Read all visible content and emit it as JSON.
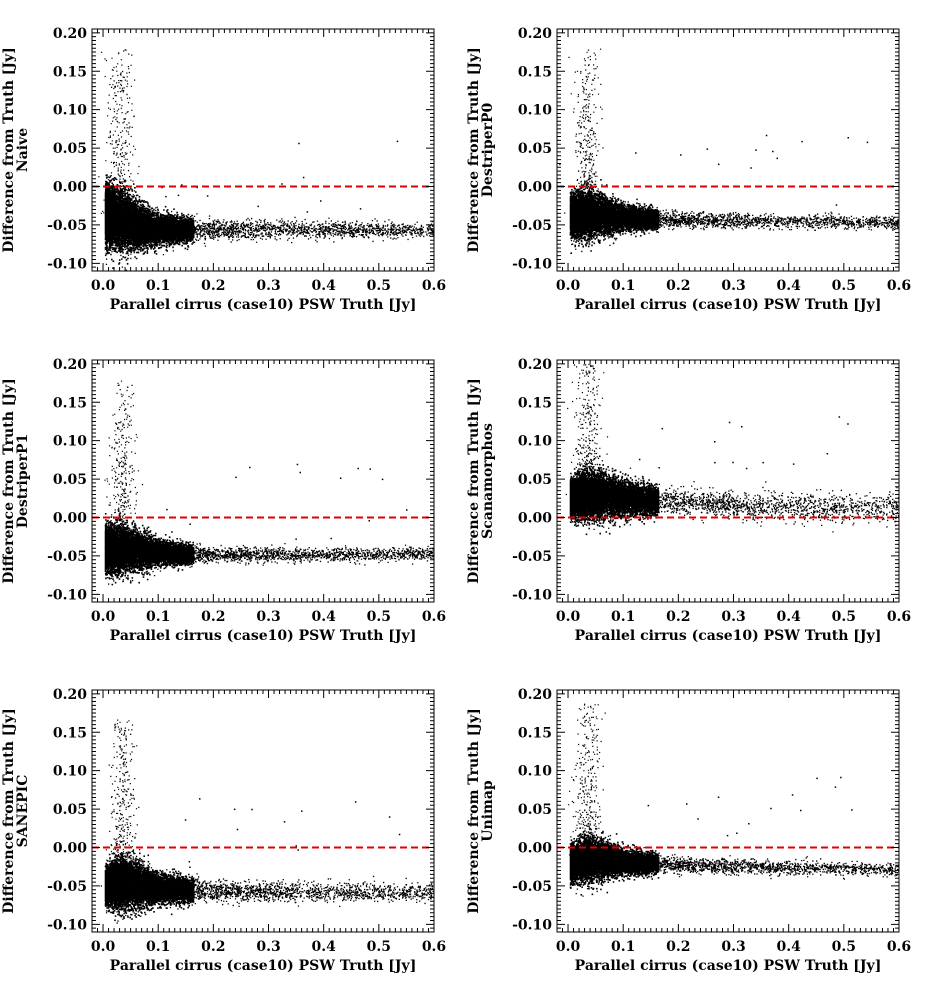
{
  "figure": {
    "rows": 3,
    "cols": 2,
    "reference_line_color": "#e00000",
    "point_color": "#000000"
  },
  "chart_data": [
    {
      "type": "scatter",
      "method": "Naive",
      "title": "",
      "xlabel": "Parallel cirrus (case10) PSW Truth [Jy]",
      "ylabel": "Difference from Truth [Jy]",
      "ylabel2": "Naive",
      "xlim": [
        -0.02,
        0.6
      ],
      "ylim": [
        -0.11,
        0.205
      ],
      "xticks": [
        "0.0",
        "0.1",
        "0.2",
        "0.3",
        "0.4",
        "0.5",
        "0.6"
      ],
      "yticks": [
        "-0.10",
        "-0.05",
        "0.00",
        "0.05",
        "0.10",
        "0.15",
        "0.20"
      ],
      "reference_line_y": 0.0,
      "trend": {
        "x": [
          0.0,
          0.03,
          0.06,
          0.1,
          0.15,
          0.2,
          0.3,
          0.4,
          0.5,
          0.6
        ],
        "y": [
          -0.035,
          -0.043,
          -0.05,
          -0.055,
          -0.056,
          -0.055,
          -0.055,
          -0.056,
          -0.056,
          -0.057
        ]
      },
      "spread": {
        "x": [
          0.0,
          0.03,
          0.06,
          0.1,
          0.2,
          0.6
        ],
        "y": [
          0.022,
          0.025,
          0.02,
          0.012,
          0.008,
          0.006
        ]
      },
      "spike": {
        "x_center": 0.03,
        "y_max": 0.18
      }
    },
    {
      "type": "scatter",
      "method": "DestriperP0",
      "title": "",
      "xlabel": "Parallel cirrus (case10) PSW Truth [Jy]",
      "ylabel": "Difference from Truth [Jy]",
      "ylabel2": "DestriperP0",
      "xlim": [
        -0.02,
        0.6
      ],
      "ylim": [
        -0.11,
        0.205
      ],
      "xticks": [
        "0.0",
        "0.1",
        "0.2",
        "0.3",
        "0.4",
        "0.5",
        "0.6"
      ],
      "yticks": [
        "-0.10",
        "-0.05",
        "0.00",
        "0.05",
        "0.10",
        "0.15",
        "0.20"
      ],
      "reference_line_y": 0.0,
      "trend": {
        "x": [
          0.0,
          0.03,
          0.06,
          0.1,
          0.15,
          0.2,
          0.3,
          0.4,
          0.5,
          0.6
        ],
        "y": [
          -0.037,
          -0.035,
          -0.036,
          -0.04,
          -0.042,
          -0.043,
          -0.044,
          -0.045,
          -0.046,
          -0.047
        ]
      },
      "spread": {
        "x": [
          0.0,
          0.03,
          0.06,
          0.1,
          0.2,
          0.6
        ],
        "y": [
          0.014,
          0.02,
          0.016,
          0.01,
          0.006,
          0.005
        ]
      },
      "spike": {
        "x_center": 0.035,
        "y_max": 0.18
      }
    },
    {
      "type": "scatter",
      "method": "DestriperP1",
      "title": "",
      "xlabel": "Parallel cirrus (case10) PSW Truth [Jy]",
      "ylabel": "Difference from Truth [Jy]",
      "ylabel2": "DestriperP1",
      "xlim": [
        -0.02,
        0.6
      ],
      "ylim": [
        -0.11,
        0.205
      ],
      "xticks": [
        "0.0",
        "0.1",
        "0.2",
        "0.3",
        "0.4",
        "0.5",
        "0.6"
      ],
      "yticks": [
        "-0.10",
        "-0.05",
        "0.00",
        "0.05",
        "0.10",
        "0.15",
        "0.20"
      ],
      "reference_line_y": 0.0,
      "trend": {
        "x": [
          0.0,
          0.03,
          0.06,
          0.1,
          0.15,
          0.2,
          0.3,
          0.4,
          0.5,
          0.6
        ],
        "y": [
          -0.04,
          -0.04,
          -0.042,
          -0.045,
          -0.047,
          -0.048,
          -0.048,
          -0.048,
          -0.047,
          -0.046
        ]
      },
      "spread": {
        "x": [
          0.0,
          0.03,
          0.06,
          0.1,
          0.2,
          0.6
        ],
        "y": [
          0.016,
          0.02,
          0.016,
          0.01,
          0.006,
          0.005
        ]
      },
      "spike": {
        "x_center": 0.035,
        "y_max": 0.18
      }
    },
    {
      "type": "scatter",
      "method": "Scanamorphos",
      "title": "",
      "xlabel": "Parallel cirrus (case10) PSW Truth [Jy]",
      "ylabel": "Difference from Truth [Jy]",
      "ylabel2": "Scanamorphos",
      "xlim": [
        -0.02,
        0.6
      ],
      "ylim": [
        -0.11,
        0.205
      ],
      "xticks": [
        "0.0",
        "0.1",
        "0.2",
        "0.3",
        "0.4",
        "0.5",
        "0.6"
      ],
      "yticks": [
        "-0.10",
        "-0.05",
        "0.00",
        "0.05",
        "0.10",
        "0.15",
        "0.20"
      ],
      "reference_line_y": 0.0,
      "trend": {
        "x": [
          0.0,
          0.03,
          0.06,
          0.1,
          0.15,
          0.2,
          0.3,
          0.4,
          0.5,
          0.6
        ],
        "y": [
          0.025,
          0.03,
          0.03,
          0.026,
          0.023,
          0.02,
          0.017,
          0.015,
          0.013,
          0.011
        ]
      },
      "spread": {
        "x": [
          0.0,
          0.03,
          0.06,
          0.1,
          0.2,
          0.6
        ],
        "y": [
          0.012,
          0.02,
          0.02,
          0.014,
          0.01,
          0.012
        ]
      },
      "spike": {
        "x_center": 0.035,
        "y_max": 0.2
      }
    },
    {
      "type": "scatter",
      "method": "SANEPIC",
      "title": "",
      "xlabel": "Parallel cirrus (case10) PSW Truth [Jy]",
      "ylabel": "Difference from Truth [Jy]",
      "ylabel2": "SANEPIC",
      "xlim": [
        -0.02,
        0.6
      ],
      "ylim": [
        -0.11,
        0.205
      ],
      "xticks": [
        "0.0",
        "0.1",
        "0.2",
        "0.3",
        "0.4",
        "0.5",
        "0.6"
      ],
      "yticks": [
        "-0.10",
        "-0.05",
        "0.00",
        "0.05",
        "0.10",
        "0.15",
        "0.20"
      ],
      "reference_line_y": 0.0,
      "trend": {
        "x": [
          0.0,
          0.03,
          0.06,
          0.1,
          0.15,
          0.2,
          0.3,
          0.4,
          0.5,
          0.6
        ],
        "y": [
          -0.05,
          -0.045,
          -0.048,
          -0.052,
          -0.055,
          -0.056,
          -0.057,
          -0.058,
          -0.058,
          -0.058
        ]
      },
      "spread": {
        "x": [
          0.0,
          0.03,
          0.06,
          0.1,
          0.2,
          0.6
        ],
        "y": [
          0.012,
          0.022,
          0.018,
          0.012,
          0.008,
          0.007
        ]
      },
      "spike": {
        "x_center": 0.035,
        "y_max": 0.17
      }
    },
    {
      "type": "scatter",
      "method": "Unimap",
      "title": "",
      "xlabel": "Parallel cirrus (case10) PSW Truth [Jy]",
      "ylabel": "Difference from Truth [Jy]",
      "ylabel2": "Unimap",
      "xlim": [
        -0.02,
        0.6
      ],
      "ylim": [
        -0.11,
        0.205
      ],
      "xticks": [
        "0.0",
        "0.1",
        "0.2",
        "0.3",
        "0.4",
        "0.5",
        "0.6"
      ],
      "yticks": [
        "-0.10",
        "-0.05",
        "0.00",
        "0.05",
        "0.10",
        "0.15",
        "0.20"
      ],
      "reference_line_y": 0.0,
      "trend": {
        "x": [
          0.0,
          0.03,
          0.06,
          0.1,
          0.15,
          0.2,
          0.3,
          0.4,
          0.5,
          0.6
        ],
        "y": [
          -0.02,
          -0.015,
          -0.015,
          -0.018,
          -0.02,
          -0.022,
          -0.024,
          -0.026,
          -0.027,
          -0.028
        ]
      },
      "spread": {
        "x": [
          0.0,
          0.03,
          0.06,
          0.1,
          0.2,
          0.6
        ],
        "y": [
          0.012,
          0.018,
          0.016,
          0.01,
          0.006,
          0.005
        ]
      },
      "spike": {
        "x_center": 0.035,
        "y_max": 0.19
      }
    }
  ]
}
